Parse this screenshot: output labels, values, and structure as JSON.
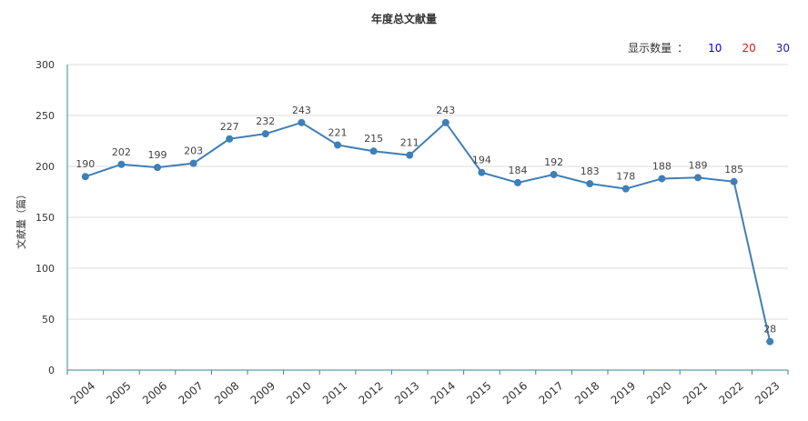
{
  "header": {
    "title": "年度总文献量",
    "count_label": "显示数量",
    "count_colon": "：",
    "count_options": [
      {
        "label": "10",
        "color": "#0000ee"
      },
      {
        "label": "20",
        "color": "#e4161b"
      },
      {
        "label": "30",
        "color": "#1b1bb8"
      }
    ]
  },
  "chart_data": {
    "type": "line",
    "title": "年度总文献量",
    "ylabel": "文献量（篇）",
    "xlabel": "",
    "ylim": [
      0,
      300
    ],
    "yticks": [
      0,
      50,
      100,
      150,
      200,
      250,
      300
    ],
    "grid": true,
    "line_color": "#3f7fb7",
    "axis_color": "#2e8b8b",
    "categories": [
      "2004",
      "2005",
      "2006",
      "2007",
      "2008",
      "2009",
      "2010",
      "2011",
      "2012",
      "2013",
      "2014",
      "2015",
      "2016",
      "2017",
      "2018",
      "2019",
      "2020",
      "2021",
      "2022",
      "2023"
    ],
    "values": [
      190,
      202,
      199,
      203,
      227,
      232,
      243,
      221,
      215,
      211,
      243,
      194,
      184,
      192,
      183,
      178,
      188,
      189,
      185,
      28
    ]
  }
}
